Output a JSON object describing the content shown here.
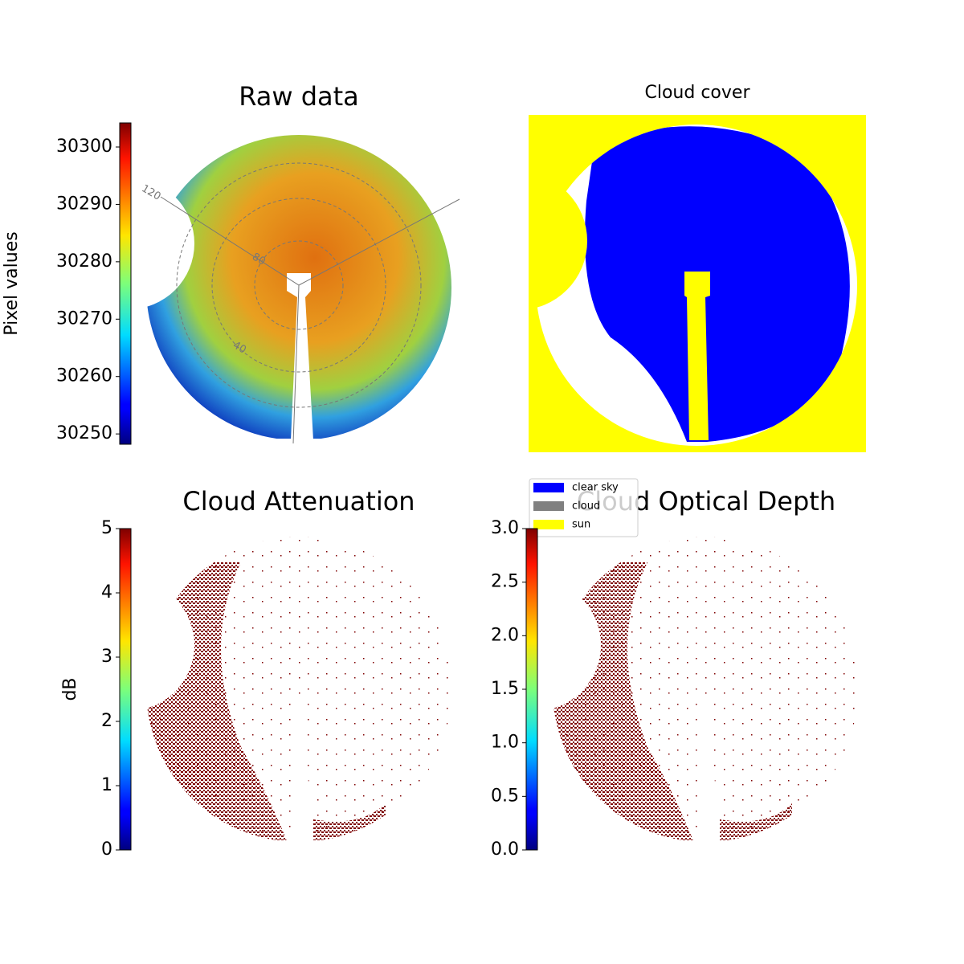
{
  "chart_data": [
    {
      "type": "image",
      "title": "Raw data",
      "colorbar": {
        "label": "Pixel values",
        "lim": [
          30248.2,
          30304.2
        ],
        "ticks": [
          30250,
          30260,
          30270,
          30280,
          30290,
          30300
        ]
      },
      "annotations": [
        "120",
        "80",
        "40"
      ]
    },
    {
      "type": "image",
      "title": "Cloud cover",
      "series": [
        {
          "name": "clear sky",
          "color": "#0000ff"
        },
        {
          "name": "cloud",
          "color": "#808080"
        },
        {
          "name": "sun",
          "color": "#ffff00"
        }
      ]
    },
    {
      "type": "image",
      "title": "Cloud Attenuation",
      "colorbar": {
        "label": "dB",
        "lim": [
          0,
          5
        ],
        "ticks": [
          0,
          1,
          2,
          3,
          4,
          5
        ]
      }
    },
    {
      "type": "image",
      "title": "Cloud Optical Depth",
      "colorbar": {
        "lim": [
          0,
          3
        ],
        "ticks": [
          {
            "value": 0,
            "label": "0.0"
          },
          0.5,
          {
            "value": 1,
            "label": "1.0"
          },
          1.5,
          {
            "value": 2,
            "label": "2.0"
          },
          2.5,
          {
            "value": 3,
            "label": "3.0"
          }
        ]
      }
    }
  ]
}
